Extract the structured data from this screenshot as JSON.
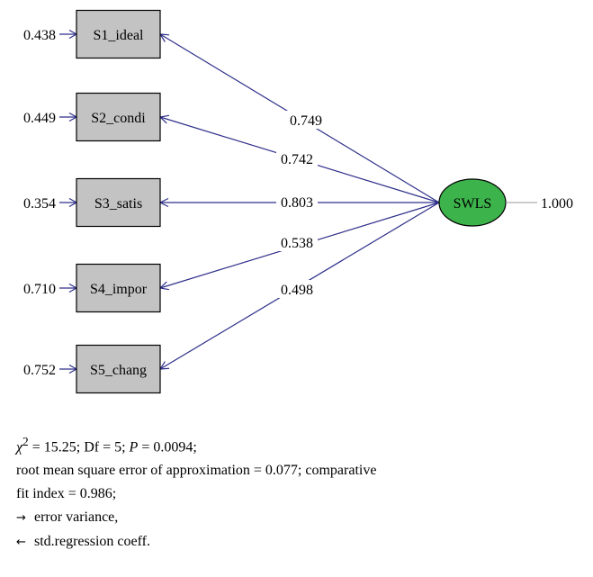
{
  "diagram": {
    "latent": {
      "label": "SWLS",
      "variance": "1.000",
      "fill": "#3cb44b"
    },
    "indicators": [
      {
        "label": "S1_ideal",
        "error": "0.438",
        "loading": "0.749"
      },
      {
        "label": "S2_condi",
        "error": "0.449",
        "loading": "0.742"
      },
      {
        "label": "S3_satis",
        "error": "0.354",
        "loading": "0.803"
      },
      {
        "label": "S4_impor",
        "error": "0.710",
        "loading": "0.538"
      },
      {
        "label": "S5_chang",
        "error": "0.752",
        "loading": "0.498"
      }
    ],
    "path_color": "#2e2f8a",
    "box_color": "#c3c3c3"
  },
  "notes": {
    "chi_symbol": "χ",
    "chi_power": "2",
    "fit_line1_rest": " = 15.25; Df = 5; ",
    "p_symbol": "P",
    "p_value": " = 0.0094;",
    "fit_line2": "root mean square error of approximation = 0.077; comparative",
    "fit_line3": "fit index = 0.986;",
    "legend_error_symbol": "→",
    "legend_error": "error variance,",
    "legend_coef_symbol": "←",
    "legend_coef": "std.regression coeff."
  }
}
